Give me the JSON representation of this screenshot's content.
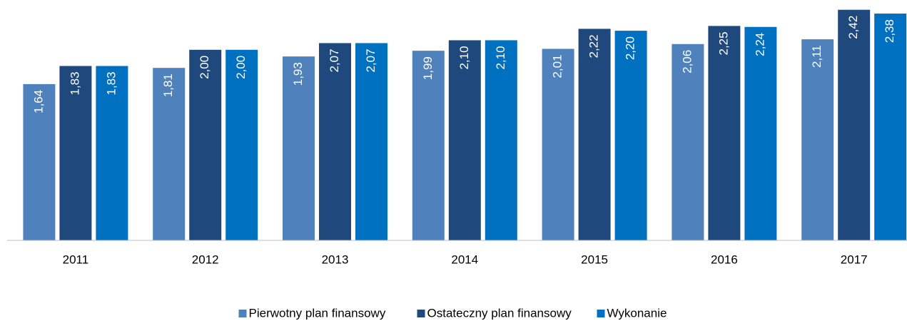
{
  "chart_data": {
    "type": "bar",
    "categories": [
      "2011",
      "2012",
      "2013",
      "2014",
      "2015",
      "2016",
      "2017"
    ],
    "series": [
      {
        "name": "Pierwotny plan finansowy",
        "color": "#4f81bd",
        "values": [
          1.64,
          1.81,
          1.93,
          1.99,
          2.01,
          2.06,
          2.11
        ],
        "value_labels": [
          "1,64",
          "1,81",
          "1,93",
          "1,99",
          "2,01",
          "2,06",
          "2,11"
        ]
      },
      {
        "name": "Ostateczny plan finansowy",
        "color": "#1f497d",
        "values": [
          1.83,
          2.0,
          2.07,
          2.1,
          2.22,
          2.25,
          2.42
        ],
        "value_labels": [
          "1,83",
          "2,00",
          "2,07",
          "2,10",
          "2,22",
          "2,25",
          "2,42"
        ]
      },
      {
        "name": "Wykonanie",
        "color": "#0070c0",
        "values": [
          1.83,
          2.0,
          2.07,
          2.1,
          2.2,
          2.24,
          2.38
        ],
        "value_labels": [
          "1,83",
          "2,00",
          "2,07",
          "2,10",
          "2,20",
          "2,24",
          "2,38"
        ]
      }
    ],
    "ylim": [
      0,
      2.5
    ],
    "legend": "bottom"
  }
}
